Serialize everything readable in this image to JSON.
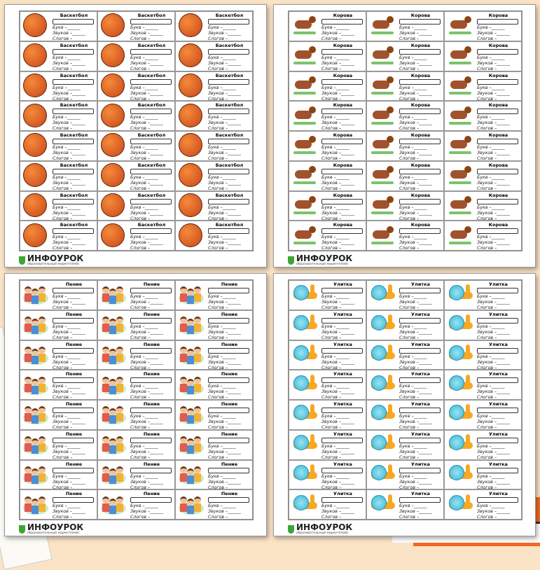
{
  "labels": {
    "letters": "Букв –",
    "sounds": "Звуков –",
    "syllables": "Слогов –"
  },
  "logo": {
    "name": "ИНФОУРОК",
    "subtitle": "образовательный маркетплейс"
  },
  "worksheets": [
    {
      "id": "basketball",
      "title": "Баскетбол",
      "icon": "basketball-icon",
      "rows": 8,
      "cols": 3
    },
    {
      "id": "singing",
      "title": "Пение",
      "icon": "children-singing-icon",
      "rows": 8,
      "cols": 3
    },
    {
      "id": "cow",
      "title": "Корова",
      "icon": "cow-icon",
      "rows": 8,
      "cols": 3
    },
    {
      "id": "snail",
      "title": "Улитка",
      "icon": "snail-icon",
      "rows": 8,
      "cols": 3
    }
  ],
  "colors": {
    "background": "#fbe3c6",
    "logo_green": "#3fa535",
    "accent_orange": "#f26a21"
  }
}
